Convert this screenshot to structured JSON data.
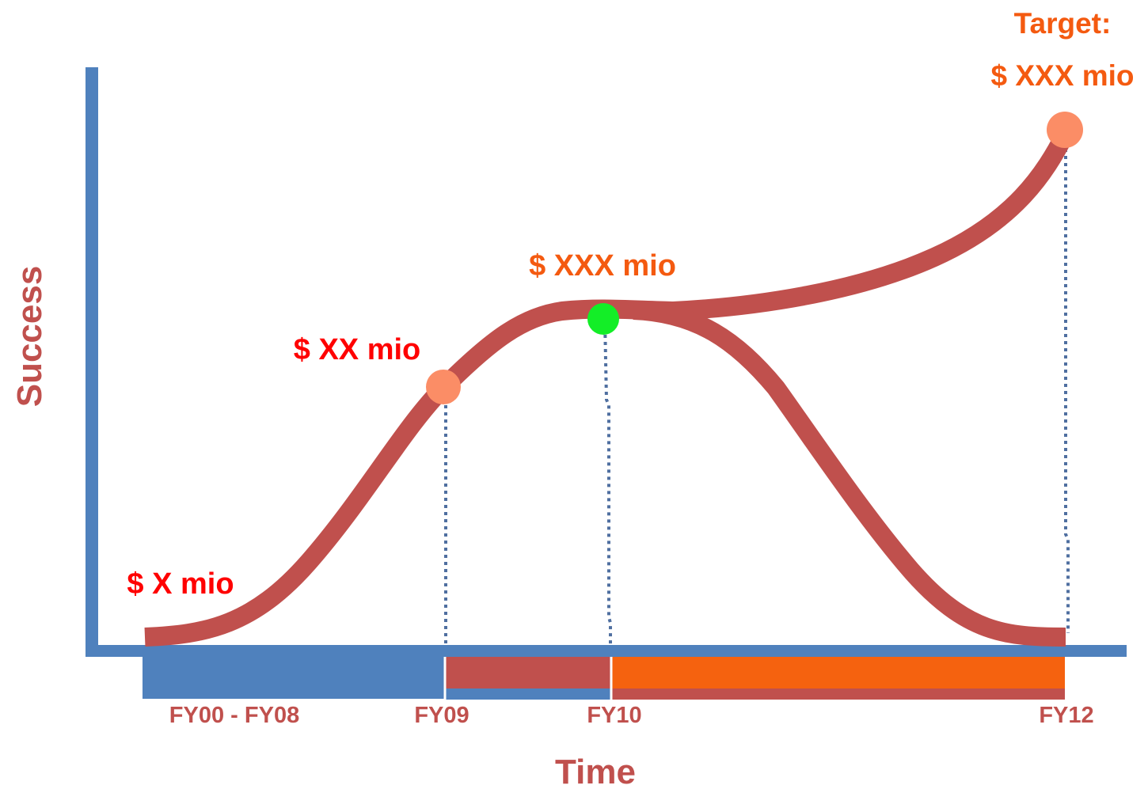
{
  "axes": {
    "y_label": "Success",
    "x_label": "Time"
  },
  "labels": {
    "start_value": "$ X mio",
    "fy09_value": "$ XX mio",
    "fy10_value": "$ XXX mio",
    "target_title": "Target:",
    "target_value": "$ XXX mio"
  },
  "periods": [
    {
      "label": "FY00 - FY08"
    },
    {
      "label": "FY09"
    },
    {
      "label": "FY10"
    },
    {
      "label": "FY12"
    }
  ],
  "colors": {
    "axis": "#4f81bd",
    "curve": "#c0504d",
    "label_red": "#ff0000",
    "label_orange": "#f45a10",
    "marker_orange": "#fb8d66",
    "marker_green": "#13ee27",
    "bar_blue": "#4f81bd",
    "bar_red": "#c0504d",
    "bar_orange": "#f5620f",
    "dotted": "#4f6fa0"
  }
}
